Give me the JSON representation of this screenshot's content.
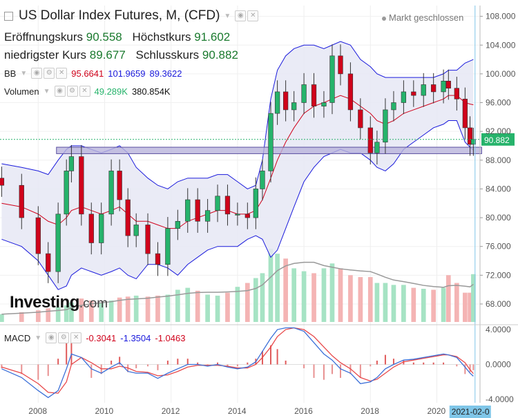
{
  "header": {
    "title": "US Dollar Index Futures, M, (CFD)",
    "status": "Markt geschlossen",
    "ohlc": [
      {
        "label": "Eröffnungskurs",
        "value": "90.558"
      },
      {
        "label": "Höchstkurs",
        "value": "91.602"
      },
      {
        "label": "niedrigster Kurs",
        "value": "89.677"
      },
      {
        "label": "Schlusskurs",
        "value": "90.882"
      }
    ]
  },
  "indicators": {
    "bb": {
      "name": "BB",
      "values": [
        "95.6641",
        "101.9659",
        "89.3622"
      ],
      "colors": [
        "#d0021b",
        "#1a1adc",
        "#1a1adc"
      ]
    },
    "volume": {
      "name": "Volumen",
      "values": [
        "49.289K",
        "380.854K"
      ],
      "colors": [
        "#26b36b",
        "#111111"
      ]
    },
    "macd": {
      "name": "MACD",
      "values": [
        "-0.3041",
        "-1.3504",
        "-1.0463"
      ],
      "colors": [
        "#d0021b",
        "#1a1adc",
        "#d0021b"
      ]
    }
  },
  "logo": {
    "main": "Investing",
    "suffix": ".com"
  },
  "colors": {
    "up": "#26b36b",
    "down": "#d0021b",
    "band_fill": "#e6e7f5",
    "band_line": "#1a1adc",
    "mid_line": "#d0021b",
    "price_line": "#26b36b",
    "cursor": "#7fc6e8"
  },
  "chart_data": [
    {
      "type": "candlestick",
      "title": "US Dollar Index Futures, M, (CFD)",
      "x_ticks": [
        "2008",
        "2010",
        "2012",
        "2014",
        "2016",
        "2018",
        "2020"
      ],
      "x_range": [
        2006.85,
        2021.3
      ],
      "y_ticks": [
        "108.000",
        "104.000",
        "100.000",
        "96.000",
        "92.000",
        "88.000",
        "84.000",
        "80.000",
        "76.000",
        "72.000",
        "68.000"
      ],
      "ylim": [
        65.5,
        109.5
      ],
      "last_price": 90.882,
      "last_price_label": "90.882",
      "cursor_label": "2021-02-0",
      "horizontal_zone": [
        88.9,
        89.8
      ],
      "x": [
        2006.9,
        2007.5,
        2008.0,
        2008.3,
        2008.6,
        2008.85,
        2009.0,
        2009.3,
        2009.6,
        2009.9,
        2010.2,
        2010.45,
        2010.7,
        2010.95,
        2011.3,
        2011.6,
        2011.9,
        2012.2,
        2012.5,
        2012.8,
        2013.1,
        2013.4,
        2013.7,
        2014.0,
        2014.3,
        2014.55,
        2014.75,
        2015.0,
        2015.2,
        2015.45,
        2015.7,
        2016.0,
        2016.3,
        2016.6,
        2016.85,
        2017.1,
        2017.4,
        2017.7,
        2018.0,
        2018.2,
        2018.45,
        2018.7,
        2019.0,
        2019.3,
        2019.6,
        2019.9,
        2020.2,
        2020.35,
        2020.6,
        2020.85,
        2021.0,
        2021.1
      ],
      "close": [
        84.5,
        80.0,
        75.0,
        72.5,
        80.5,
        86.5,
        88.5,
        80.5,
        76.5,
        80.5,
        86.5,
        82.5,
        77.5,
        79.0,
        75.0,
        73.5,
        78.5,
        79.5,
        82.5,
        79.5,
        81.0,
        83.0,
        80.5,
        80.5,
        80.0,
        84.0,
        86.5,
        94.5,
        97.5,
        95.0,
        96.0,
        98.5,
        95.5,
        96.0,
        102.5,
        100.0,
        95.0,
        92.5,
        89.0,
        90.5,
        95.0,
        96.0,
        97.5,
        97.0,
        98.5,
        97.5,
        99.0,
        98.0,
        96.5,
        92.5,
        90.2,
        90.9
      ],
      "bb_mid": [
        82.0,
        81.5,
        80.5,
        79.5,
        79.0,
        80.0,
        81.0,
        81.5,
        81.0,
        80.5,
        81.0,
        81.5,
        80.5,
        79.5,
        79.5,
        79.0,
        78.5,
        78.5,
        79.5,
        80.0,
        80.5,
        81.0,
        81.0,
        80.5,
        80.5,
        81.0,
        82.5,
        85.5,
        88.0,
        90.5,
        92.5,
        94.5,
        95.5,
        96.0,
        96.5,
        97.0,
        96.5,
        95.5,
        94.5,
        93.5,
        93.0,
        93.5,
        94.5,
        95.0,
        95.5,
        96.0,
        96.5,
        97.0,
        97.0,
        96.0,
        95.8,
        95.7
      ],
      "bb_upper": [
        87.5,
        87.0,
        86.5,
        86.0,
        88.0,
        89.5,
        90.0,
        90.0,
        89.5,
        89.0,
        89.5,
        90.0,
        89.0,
        87.0,
        85.5,
        84.5,
        84.0,
        85.0,
        85.5,
        85.5,
        85.5,
        86.0,
        86.0,
        85.0,
        84.0,
        84.5,
        88.0,
        96.5,
        100.5,
        102.5,
        103.5,
        104.0,
        104.0,
        103.5,
        104.0,
        104.5,
        104.0,
        102.0,
        101.0,
        100.0,
        99.5,
        99.5,
        99.5,
        99.5,
        99.5,
        99.5,
        100.0,
        100.5,
        100.5,
        101.5,
        101.8,
        102.0
      ],
      "bb_lower": [
        77.0,
        76.0,
        74.0,
        72.0,
        70.0,
        70.5,
        72.0,
        73.0,
        72.5,
        72.0,
        72.5,
        73.0,
        72.0,
        71.5,
        73.5,
        73.5,
        73.0,
        72.0,
        73.5,
        74.5,
        75.5,
        76.0,
        76.0,
        76.0,
        77.0,
        77.5,
        77.0,
        74.5,
        75.5,
        78.5,
        81.5,
        85.0,
        87.0,
        88.5,
        89.0,
        89.5,
        89.0,
        89.0,
        88.0,
        87.0,
        86.5,
        87.5,
        89.5,
        90.5,
        91.5,
        92.5,
        93.0,
        93.5,
        93.5,
        90.5,
        89.8,
        89.4
      ],
      "volume": [
        8,
        10,
        12,
        14,
        15,
        17,
        20,
        24,
        22,
        20,
        22,
        25,
        26,
        27,
        26,
        27,
        28,
        33,
        35,
        32,
        28,
        27,
        30,
        36,
        40,
        45,
        50,
        75,
        70,
        65,
        55,
        52,
        50,
        55,
        60,
        55,
        48,
        46,
        46,
        40,
        40,
        38,
        38,
        35,
        34,
        33,
        35,
        48,
        40,
        30,
        30,
        49
      ]
    },
    {
      "type": "line",
      "name": "MACD",
      "y_ticks": [
        "4.0000",
        "0.0000",
        "-4.0000"
      ],
      "ylim": [
        -4.4,
        4.4
      ],
      "x": [
        2006.9,
        2007.5,
        2008.0,
        2008.3,
        2008.6,
        2008.85,
        2009.0,
        2009.3,
        2009.6,
        2009.9,
        2010.2,
        2010.45,
        2010.7,
        2010.95,
        2011.3,
        2011.6,
        2011.9,
        2012.2,
        2012.5,
        2012.8,
        2013.1,
        2013.4,
        2013.7,
        2014.0,
        2014.3,
        2014.55,
        2014.75,
        2015.0,
        2015.2,
        2015.45,
        2015.7,
        2016.0,
        2016.3,
        2016.6,
        2016.85,
        2017.1,
        2017.4,
        2017.7,
        2018.0,
        2018.2,
        2018.45,
        2018.7,
        2019.0,
        2019.3,
        2019.6,
        2019.9,
        2020.2,
        2020.35,
        2020.6,
        2020.85,
        2021.0,
        2021.1
      ],
      "macd": [
        -0.5,
        -1.5,
        -3.0,
        -3.8,
        -3.0,
        -0.5,
        1.2,
        0.8,
        -0.5,
        -1.0,
        -0.3,
        0.2,
        -0.8,
        -1.0,
        -1.0,
        -1.6,
        -1.0,
        -0.5,
        0.0,
        0.0,
        -0.2,
        0.0,
        -0.3,
        -0.5,
        -0.3,
        0.3,
        1.5,
        3.0,
        4.0,
        4.2,
        4.2,
        3.8,
        2.5,
        1.2,
        0.5,
        -0.5,
        -1.0,
        -2.2,
        -2.0,
        -1.5,
        -0.5,
        0.0,
        0.5,
        0.6,
        0.8,
        1.0,
        1.2,
        1.1,
        0.8,
        -0.3,
        -1.0,
        -1.35
      ],
      "signal": [
        -0.3,
        -1.0,
        -2.2,
        -3.2,
        -3.3,
        -2.0,
        0.0,
        0.8,
        0.2,
        -0.5,
        -0.5,
        -0.2,
        -0.4,
        -0.8,
        -0.9,
        -1.3,
        -1.2,
        -0.8,
        -0.3,
        -0.1,
        -0.1,
        -0.1,
        -0.2,
        -0.4,
        -0.4,
        0.0,
        0.8,
        2.0,
        3.2,
        4.0,
        4.2,
        4.0,
        3.2,
        2.0,
        1.0,
        0.2,
        -0.5,
        -1.5,
        -1.9,
        -1.7,
        -1.0,
        -0.3,
        0.3,
        0.5,
        0.7,
        0.9,
        1.1,
        1.1,
        0.9,
        0.2,
        -0.6,
        -1.05
      ]
    }
  ]
}
